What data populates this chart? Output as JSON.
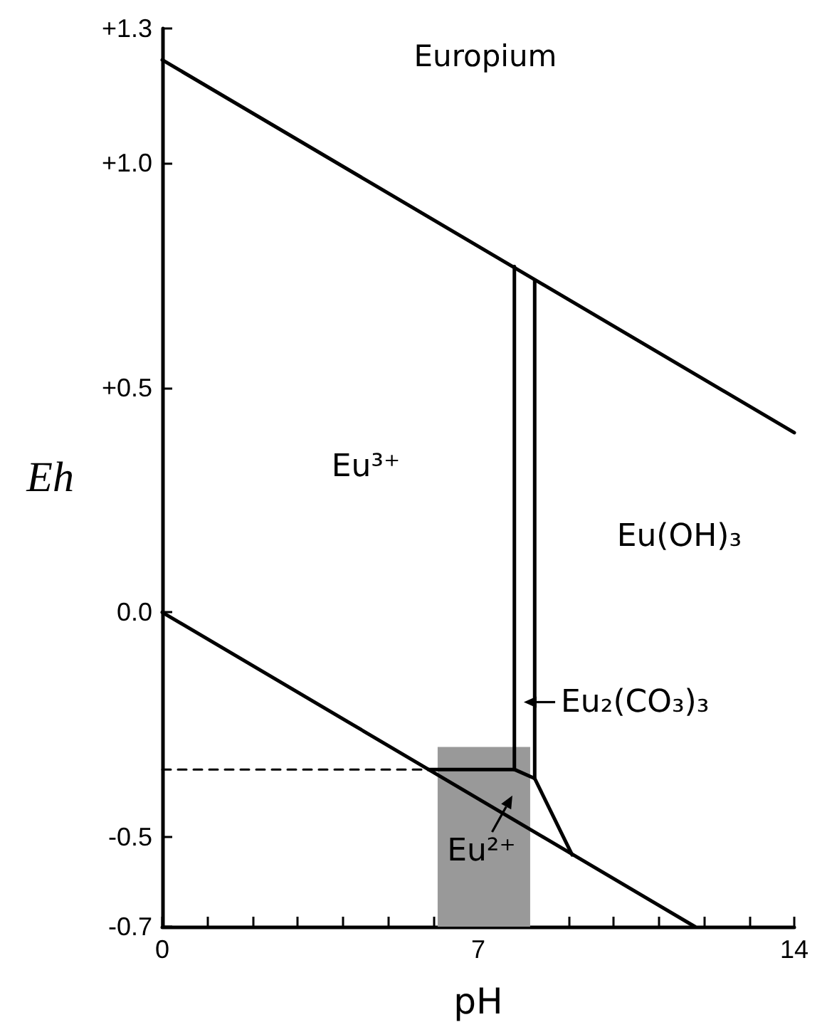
{
  "chart_data": {
    "type": "line",
    "title": "Europium",
    "xlabel": "pH",
    "ylabel": "Eh",
    "xlim": [
      0,
      14
    ],
    "xticks": [
      0,
      {
        "value": 1,
        "label": null
      },
      {
        "value": 2,
        "label": null
      },
      {
        "value": 3,
        "label": null
      },
      {
        "value": 4,
        "label": null
      },
      {
        "value": 5,
        "label": null
      },
      {
        "value": 6,
        "label": null
      },
      7,
      {
        "value": 8,
        "label": null
      },
      {
        "value": 9,
        "label": null
      },
      {
        "value": 10,
        "label": null
      },
      {
        "value": 11,
        "label": null
      },
      {
        "value": 12,
        "label": null
      },
      {
        "value": 13,
        "label": null
      },
      14
    ],
    "ylim": [
      -0.7,
      1.3
    ],
    "yticks": [
      -0.7,
      -0.5,
      {
        "value": 0,
        "label": "0.0"
      },
      {
        "value": 0.5,
        "label": "+0.5"
      },
      {
        "value": 1.0,
        "label": "+1.0"
      },
      {
        "value": 1.3,
        "label": "+1.3"
      }
    ],
    "series": [
      {
        "type": "histogram",
        "bins": [
          6.1,
          8.15
        ],
        "values": [
          0.4
        ],
        "base": [
          -0.7
        ],
        "color": "#999999"
      },
      {
        "x": [
          0,
          14
        ],
        "values": [
          1.23,
          0.4
        ],
        "color": "#000000"
      },
      {
        "x": [
          0,
          11.8
        ],
        "values": [
          0,
          -0.7
        ],
        "color": "#000000"
      },
      {
        "x": [
          0,
          5.9
        ],
        "values": [
          -0.35,
          -0.35
        ],
        "color": "#000000",
        "line_style": "dashed"
      },
      {
        "x": [
          5.9,
          7.8,
          8.25,
          9.08
        ],
        "values": [
          -0.35,
          -0.35,
          -0.37,
          -0.54
        ],
        "color": "#000000"
      },
      {
        "x": [
          7.8,
          7.8
        ],
        "values": [
          -0.35,
          0.77
        ],
        "color": "#000000"
      },
      {
        "x": [
          8.25,
          8.25
        ],
        "values": [
          -0.37,
          0.74
        ],
        "color": "#000000"
      }
    ],
    "annotations": [
      "Eu³⁺",
      "Eu(OH)₃",
      "Eu₂(CO₃)₃",
      "Eu²⁺"
    ],
    "marker": "none",
    "line_style": "solid",
    "grid": false
  }
}
